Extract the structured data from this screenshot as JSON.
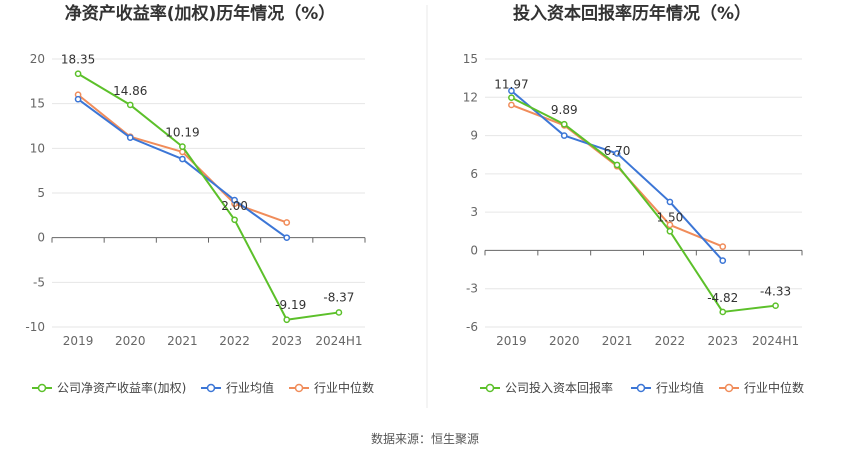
{
  "source_text": "数据来源：恒生聚源",
  "chart_data": [
    {
      "type": "line",
      "title": "净资产收益率(加权)历年情况（%）",
      "categories": [
        "2019",
        "2020",
        "2021",
        "2022",
        "2023",
        "2024H1"
      ],
      "ylim": [
        -10,
        20
      ],
      "yticks": [
        "20",
        "15",
        "10",
        "5",
        "0",
        "-5",
        "-10"
      ],
      "grid": true,
      "legend": "bottom",
      "series": [
        {
          "name": "公司净资产收益率(加权)",
          "color": "#5cc02a",
          "values": [
            18.35,
            14.86,
            10.19,
            2.0,
            -9.19,
            -8.37
          ],
          "labels": [
            "18.35",
            "14.86",
            "10.19",
            "2.00",
            "-9.19",
            "-8.37"
          ]
        },
        {
          "name": "行业均值",
          "color": "#3c76d6",
          "values": [
            15.5,
            11.2,
            8.8,
            4.2,
            0.0,
            null
          ]
        },
        {
          "name": "行业中位数",
          "color": "#f08c5a",
          "values": [
            16.0,
            11.3,
            9.6,
            3.8,
            1.7,
            null
          ]
        }
      ]
    },
    {
      "type": "line",
      "title": "投入资本回报率历年情况（%）",
      "categories": [
        "2019",
        "2020",
        "2021",
        "2022",
        "2023",
        "2024H1"
      ],
      "ylim": [
        -6,
        15
      ],
      "yticks": [
        "15",
        "12",
        "9",
        "6",
        "3",
        "0",
        "-3",
        "-6"
      ],
      "grid": true,
      "legend": "bottom",
      "series": [
        {
          "name": "公司投入资本回报率",
          "color": "#5cc02a",
          "values": [
            11.97,
            9.89,
            6.7,
            1.5,
            -4.82,
            -4.33
          ],
          "labels": [
            "11.97",
            "9.89",
            "6.70",
            "1.50",
            "-4.82",
            "-4.33"
          ]
        },
        {
          "name": "行业均值",
          "color": "#3c76d6",
          "values": [
            12.5,
            9.0,
            7.6,
            3.8,
            -0.8,
            null
          ]
        },
        {
          "name": "行业中位数",
          "color": "#f08c5a",
          "values": [
            11.4,
            9.8,
            6.6,
            2.0,
            0.3,
            null
          ]
        }
      ]
    }
  ]
}
